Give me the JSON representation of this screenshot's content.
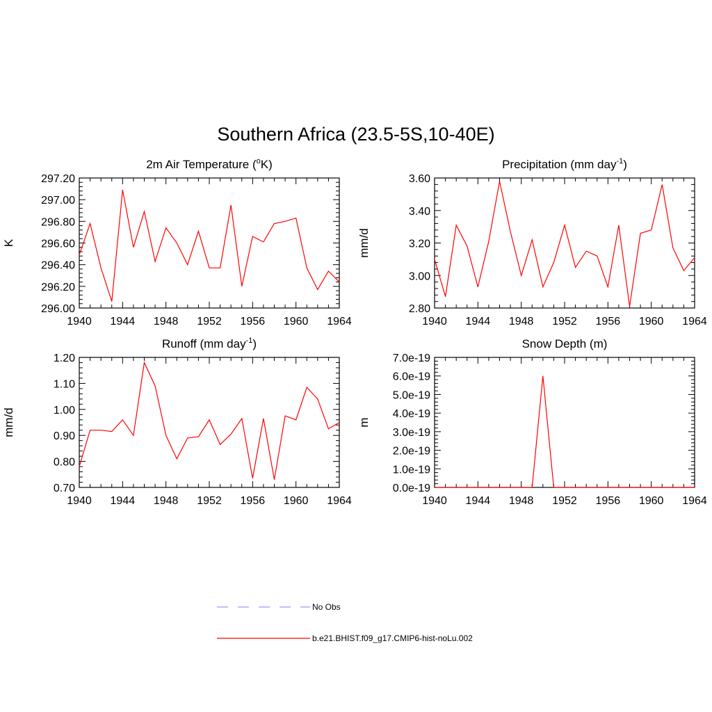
{
  "figure_title": "Southern Africa (23.5-5S,10-40E)",
  "legend": {
    "entries": [
      {
        "label": "No Obs",
        "color": "#9999ff",
        "dash": true
      },
      {
        "label": "b.e21.BHIST.f09_g17.CMIP6-hist-noLu.002",
        "color": "#ff0000",
        "dash": false
      }
    ]
  },
  "chart_data": [
    {
      "type": "line",
      "title_parts": {
        "before": "2m Air Temperature (",
        "sup": "o",
        "after": "K)"
      },
      "ylabel": "K",
      "xlim": [
        1940,
        1964
      ],
      "ylim": [
        296.0,
        297.2
      ],
      "xticks": [
        1940,
        1944,
        1948,
        1952,
        1956,
        1960,
        1964
      ],
      "yticks": [
        "296.00",
        "296.20",
        "296.40",
        "296.60",
        "296.80",
        "297.00",
        "297.20"
      ],
      "series": [
        {
          "color": "#ff0000",
          "x": [
            1940,
            1941,
            1942,
            1943,
            1944,
            1945,
            1946,
            1947,
            1948,
            1949,
            1950,
            1951,
            1952,
            1953,
            1954,
            1955,
            1956,
            1957,
            1958,
            1959,
            1960,
            1961,
            1962,
            1963,
            1964
          ],
          "y": [
            296.49,
            296.78,
            296.37,
            296.06,
            297.09,
            296.56,
            296.89,
            296.43,
            296.74,
            296.6,
            296.4,
            296.71,
            296.37,
            296.37,
            296.95,
            296.2,
            296.66,
            296.61,
            296.78,
            296.8,
            296.83,
            296.37,
            296.17,
            296.34,
            296.24
          ]
        }
      ]
    },
    {
      "type": "line",
      "title_parts": {
        "before": "Precipitation (mm day",
        "sup": "-1",
        "after": ")"
      },
      "ylabel": "mm/d",
      "xlim": [
        1940,
        1964
      ],
      "ylim": [
        2.8,
        3.6
      ],
      "xticks": [
        1940,
        1944,
        1948,
        1952,
        1956,
        1960,
        1964
      ],
      "yticks": [
        "2.80",
        "3.00",
        "3.20",
        "3.40",
        "3.60"
      ],
      "series": [
        {
          "color": "#ff0000",
          "x": [
            1940,
            1941,
            1942,
            1943,
            1944,
            1945,
            1946,
            1947,
            1948,
            1949,
            1950,
            1951,
            1952,
            1953,
            1954,
            1955,
            1956,
            1957,
            1958,
            1959,
            1960,
            1961,
            1962,
            1963,
            1964
          ],
          "y": [
            3.1,
            2.87,
            3.31,
            3.18,
            2.93,
            3.21,
            3.58,
            3.27,
            3.0,
            3.22,
            2.93,
            3.08,
            3.31,
            3.05,
            3.15,
            3.12,
            2.93,
            3.31,
            2.81,
            3.26,
            3.28,
            3.56,
            3.17,
            3.03,
            3.11
          ]
        }
      ]
    },
    {
      "type": "line",
      "title_parts": {
        "before": "Runoff (mm day",
        "sup": "-1",
        "after": ")"
      },
      "ylabel": "mm/d",
      "xlim": [
        1940,
        1964
      ],
      "ylim": [
        0.7,
        1.2
      ],
      "xticks": [
        1940,
        1944,
        1948,
        1952,
        1956,
        1960,
        1964
      ],
      "yticks": [
        "0.70",
        "0.80",
        "0.90",
        "1.00",
        "1.10",
        "1.20"
      ],
      "series": [
        {
          "color": "#ff0000",
          "x": [
            1940,
            1941,
            1942,
            1943,
            1944,
            1945,
            1946,
            1947,
            1948,
            1949,
            1950,
            1951,
            1952,
            1953,
            1954,
            1955,
            1956,
            1957,
            1958,
            1959,
            1960,
            1961,
            1962,
            1963,
            1964
          ],
          "y": [
            0.78,
            0.92,
            0.92,
            0.915,
            0.96,
            0.9,
            1.18,
            1.09,
            0.9,
            0.81,
            0.89,
            0.895,
            0.96,
            0.865,
            0.905,
            0.965,
            0.735,
            0.965,
            0.73,
            0.975,
            0.96,
            1.085,
            1.04,
            0.925,
            0.95
          ]
        }
      ]
    },
    {
      "type": "line",
      "title_parts": {
        "before": "Snow Depth (m)",
        "sup": "",
        "after": ""
      },
      "ylabel": "m",
      "xlim": [
        1940,
        1964
      ],
      "ylim": [
        0,
        7e-19
      ],
      "xticks": [
        1940,
        1944,
        1948,
        1952,
        1956,
        1960,
        1964
      ],
      "yticks": [
        "0.0e-19",
        "1.0e-19",
        "2.0e-19",
        "3.0e-19",
        "4.0e-19",
        "5.0e-19",
        "6.0e-19",
        "7.0e-19"
      ],
      "series": [
        {
          "color": "#ff0000",
          "x": [
            1940,
            1941,
            1942,
            1943,
            1944,
            1945,
            1946,
            1947,
            1948,
            1949,
            1950,
            1951,
            1952,
            1953,
            1954,
            1955,
            1956,
            1957,
            1958,
            1959,
            1960,
            1961,
            1962,
            1963,
            1964
          ],
          "y": [
            0,
            0,
            0,
            0,
            0,
            0,
            0,
            0,
            0,
            0,
            6e-19,
            0,
            0,
            0,
            0,
            0,
            0,
            0,
            0,
            0,
            0,
            0,
            0,
            0,
            0
          ]
        }
      ]
    }
  ]
}
